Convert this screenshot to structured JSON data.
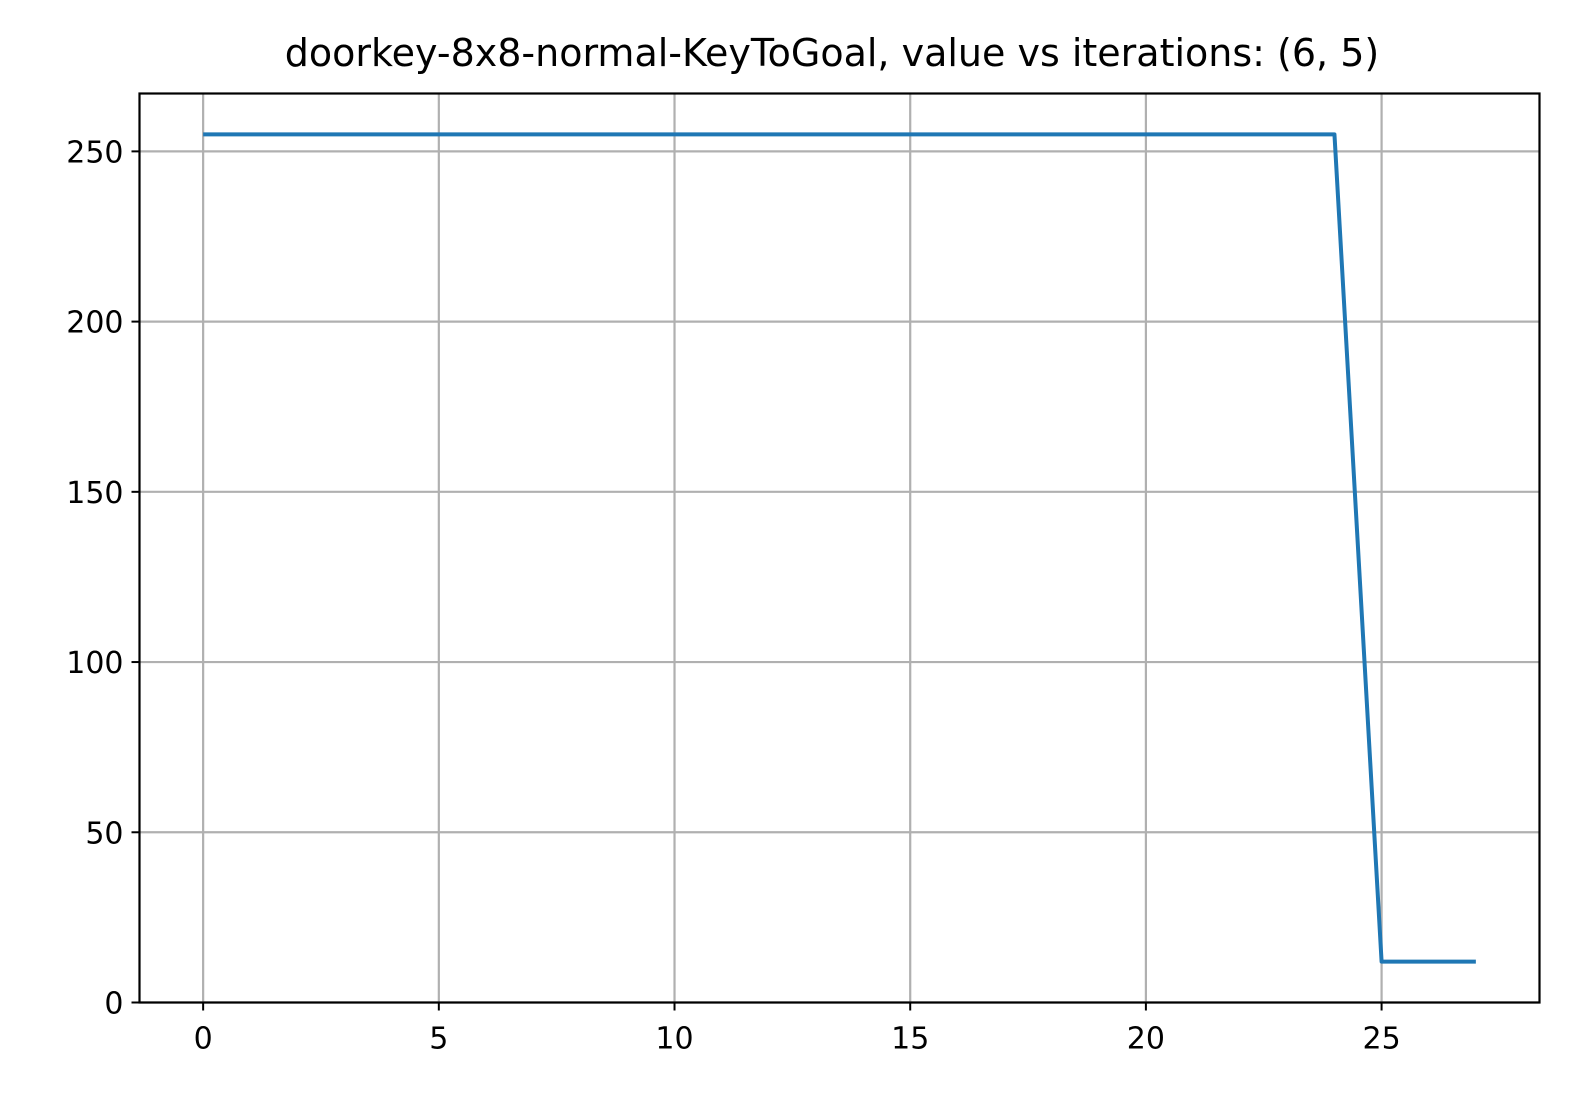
{
  "chart_data": {
    "type": "line",
    "title": "doorkey-8x8-normal-KeyToGoal, value vs iterations: (6, 5)",
    "xlabel": "",
    "ylabel": "",
    "xlim": [
      -1.35,
      28.35
    ],
    "ylim": [
      0,
      267
    ],
    "xticks": [
      0,
      5,
      10,
      15,
      20,
      25
    ],
    "xtick_labels": [
      "0",
      "5",
      "10",
      "15",
      "20",
      "25"
    ],
    "yticks": [
      0,
      50,
      100,
      150,
      200,
      250
    ],
    "ytick_labels": [
      "0",
      "50",
      "100",
      "150",
      "200",
      "250"
    ],
    "grid": true,
    "series": [
      {
        "color": "#1f77b4",
        "x": [
          0,
          1,
          2,
          3,
          4,
          5,
          6,
          7,
          8,
          9,
          10,
          11,
          12,
          13,
          14,
          15,
          16,
          17,
          18,
          19,
          20,
          21,
          22,
          23,
          24,
          25,
          26,
          27
        ],
        "y": [
          255,
          255,
          255,
          255,
          255,
          255,
          255,
          255,
          255,
          255,
          255,
          255,
          255,
          255,
          255,
          255,
          255,
          255,
          255,
          255,
          255,
          255,
          255,
          255,
          255,
          12,
          12,
          12
        ]
      }
    ]
  }
}
